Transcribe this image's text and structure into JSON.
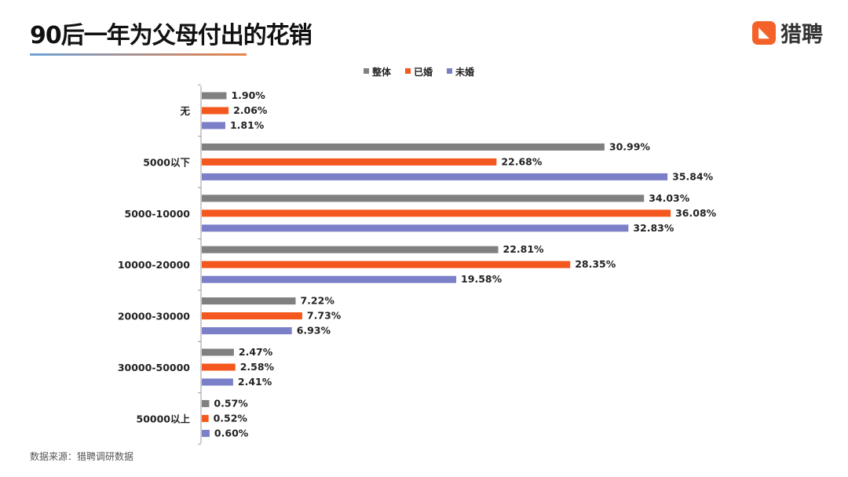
{
  "header": {
    "title": "90后一年为父母付出的花销",
    "logo_text": "猎聘"
  },
  "footer": {
    "source": "数据来源：猎聘调研数据"
  },
  "chart_data": {
    "type": "bar",
    "orientation": "horizontal",
    "categories": [
      "无",
      "5000以下",
      "5000-10000",
      "10000-20000",
      "20000-30000",
      "30000-50000",
      "50000以上"
    ],
    "series": [
      {
        "name": "整体",
        "color": "#808080",
        "values": [
          1.9,
          30.99,
          34.03,
          22.81,
          7.22,
          2.47,
          0.57
        ]
      },
      {
        "name": "已婚",
        "color": "#f4581e",
        "values": [
          2.06,
          22.68,
          36.08,
          28.35,
          7.73,
          2.58,
          0.52
        ]
      },
      {
        "name": "未婚",
        "color": "#7a7fc8",
        "values": [
          1.81,
          35.84,
          32.83,
          19.58,
          6.93,
          2.41,
          0.6
        ]
      }
    ],
    "value_suffix": "%",
    "legend": "top-center",
    "grid": false
  }
}
